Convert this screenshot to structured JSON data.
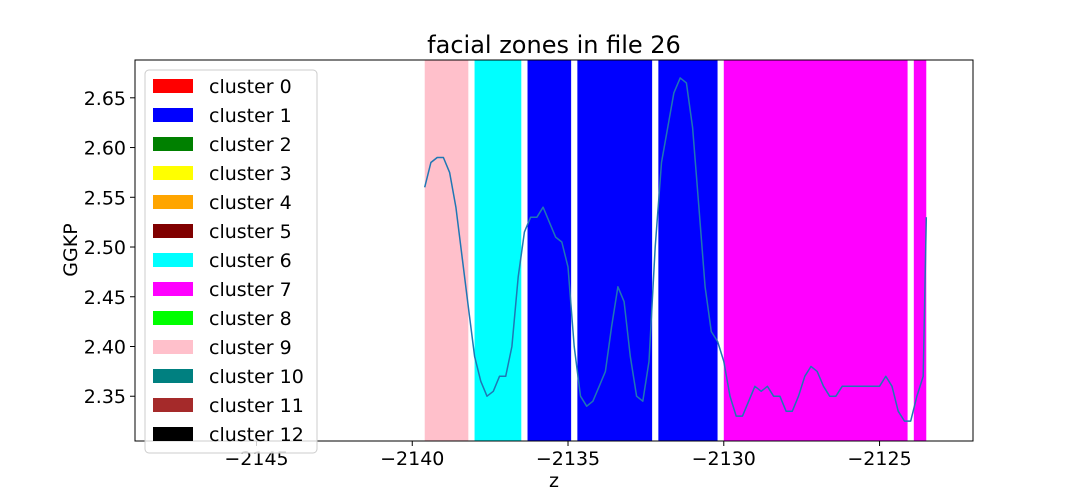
{
  "chart_data": {
    "type": "line",
    "title": "facial zones in file 26",
    "xlabel": "z",
    "ylabel": "GGKP",
    "xlim": [
      -2148.9,
      -2122.0
    ],
    "ylim": [
      2.305,
      2.688
    ],
    "grid": false,
    "legend_position": "upper-left",
    "x_ticks": [
      -2145,
      -2140,
      -2135,
      -2130,
      -2125
    ],
    "x_tick_labels": [
      "−2145",
      "−2140",
      "−2135",
      "−2130",
      "−2125"
    ],
    "y_ticks": [
      2.35,
      2.4,
      2.45,
      2.5,
      2.55,
      2.6,
      2.65
    ],
    "y_tick_labels": [
      "2.35",
      "2.40",
      "2.45",
      "2.50",
      "2.55",
      "2.60",
      "2.65"
    ],
    "legend": [
      {
        "label": "cluster 0",
        "color": "#ff0000"
      },
      {
        "label": "cluster 1",
        "color": "#0000ff"
      },
      {
        "label": "cluster 2",
        "color": "#008000"
      },
      {
        "label": "cluster 3",
        "color": "#ffff00"
      },
      {
        "label": "cluster 4",
        "color": "#ffa500"
      },
      {
        "label": "cluster 5",
        "color": "#800000"
      },
      {
        "label": "cluster 6",
        "color": "#00ffff"
      },
      {
        "label": "cluster 7",
        "color": "#ff00ff"
      },
      {
        "label": "cluster 8",
        "color": "#00ff00"
      },
      {
        "label": "cluster 9",
        "color": "#ffc0cb"
      },
      {
        "label": "cluster 10",
        "color": "#008080"
      },
      {
        "label": "cluster 11",
        "color": "#a52a2a"
      },
      {
        "label": "cluster 12",
        "color": "#000000"
      }
    ],
    "zones": [
      {
        "cluster": 9,
        "x0": -2139.6,
        "x1": -2138.2,
        "color": "#ffc0cb"
      },
      {
        "cluster": 6,
        "x0": -2138.0,
        "x1": -2136.5,
        "color": "#00ffff"
      },
      {
        "cluster": 1,
        "x0": -2136.3,
        "x1": -2134.9,
        "color": "#0000ff"
      },
      {
        "cluster": 1,
        "x0": -2134.7,
        "x1": -2132.3,
        "color": "#0000ff"
      },
      {
        "cluster": 1,
        "x0": -2132.1,
        "x1": -2130.2,
        "color": "#0000ff"
      },
      {
        "cluster": 7,
        "x0": -2130.0,
        "x1": -2124.1,
        "color": "#ff00ff"
      },
      {
        "cluster": 7,
        "x0": -2123.9,
        "x1": -2123.5,
        "color": "#ff00ff"
      }
    ],
    "series": [
      {
        "color": "#1f77b4",
        "x": [
          -2139.6,
          -2139.4,
          -2139.2,
          -2139.0,
          -2138.8,
          -2138.6,
          -2138.4,
          -2138.2,
          -2138.0,
          -2137.8,
          -2137.6,
          -2137.4,
          -2137.2,
          -2137.0,
          -2136.8,
          -2136.6,
          -2136.4,
          -2136.2,
          -2136.0,
          -2135.8,
          -2135.6,
          -2135.4,
          -2135.2,
          -2135.0,
          -2134.8,
          -2134.6,
          -2134.4,
          -2134.2,
          -2134.0,
          -2133.8,
          -2133.6,
          -2133.4,
          -2133.2,
          -2133.0,
          -2132.8,
          -2132.6,
          -2132.4,
          -2132.2,
          -2132.0,
          -2131.8,
          -2131.6,
          -2131.4,
          -2131.2,
          -2131.0,
          -2130.8,
          -2130.6,
          -2130.4,
          -2130.2,
          -2130.0,
          -2129.8,
          -2129.6,
          -2129.4,
          -2129.2,
          -2129.0,
          -2128.8,
          -2128.6,
          -2128.4,
          -2128.2,
          -2128.0,
          -2127.8,
          -2127.6,
          -2127.4,
          -2127.2,
          -2127.0,
          -2126.8,
          -2126.6,
          -2126.4,
          -2126.2,
          -2126.0,
          -2125.8,
          -2125.6,
          -2125.4,
          -2125.2,
          -2125.0,
          -2124.8,
          -2124.6,
          -2124.4,
          -2124.2,
          -2124.0,
          -2123.8,
          -2123.6,
          -2123.5
        ],
        "y": [
          2.56,
          2.585,
          2.59,
          2.59,
          2.575,
          2.54,
          2.49,
          2.44,
          2.39,
          2.365,
          2.35,
          2.355,
          2.37,
          2.37,
          2.4,
          2.47,
          2.515,
          2.53,
          2.53,
          2.54,
          2.525,
          2.51,
          2.505,
          2.48,
          2.4,
          2.35,
          2.34,
          2.345,
          2.36,
          2.375,
          2.42,
          2.46,
          2.445,
          2.39,
          2.35,
          2.345,
          2.385,
          2.5,
          2.585,
          2.62,
          2.655,
          2.67,
          2.665,
          2.62,
          2.54,
          2.46,
          2.415,
          2.405,
          2.385,
          2.35,
          2.33,
          2.33,
          2.345,
          2.36,
          2.355,
          2.36,
          2.35,
          2.35,
          2.335,
          2.335,
          2.35,
          2.37,
          2.38,
          2.375,
          2.36,
          2.35,
          2.35,
          2.36,
          2.36,
          2.36,
          2.36,
          2.36,
          2.36,
          2.36,
          2.37,
          2.36,
          2.335,
          2.325,
          2.325,
          2.35,
          2.37,
          2.53
        ]
      }
    ]
  }
}
